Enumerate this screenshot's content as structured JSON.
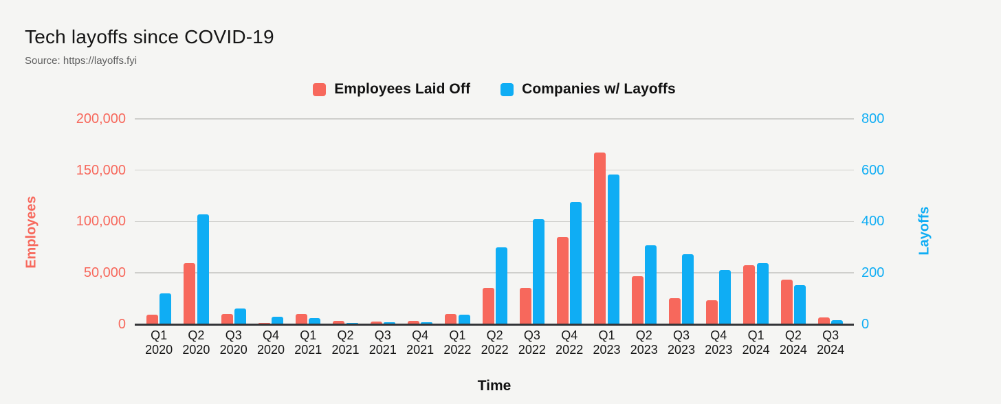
{
  "page": {
    "background": "#f5f5f3"
  },
  "header": {
    "title": "Tech layoffs since COVID-19",
    "source": "Source: https://layoffs.fyi"
  },
  "legend": [
    {
      "label": "Employees Laid Off",
      "color": "#f7685c"
    },
    {
      "label": "Companies w/ Layoffs",
      "color": "#0fadf4"
    }
  ],
  "chart_data": {
    "type": "bar",
    "title": "Tech layoffs since COVID-19",
    "xlabel": "Time",
    "grid": true,
    "legend_position": "top",
    "categories": [
      "Q1 2020",
      "Q2 2020",
      "Q3 2020",
      "Q4 2020",
      "Q1 2021",
      "Q2 2021",
      "Q3 2021",
      "Q4 2021",
      "Q1 2022",
      "Q2 2022",
      "Q3 2022",
      "Q4 2022",
      "Q1 2023",
      "Q2 2023",
      "Q3 2023",
      "Q4 2023",
      "Q1 2024",
      "Q2 2024",
      "Q3 2024"
    ],
    "series": [
      {
        "name": "Employees Laid Off",
        "axis": "left",
        "color": "#f7685c",
        "values": [
          9000,
          59000,
          10000,
          1200,
          9500,
          2900,
          2200,
          2900,
          9600,
          35000,
          35200,
          84500,
          167000,
          46500,
          25000,
          23000,
          57200,
          43400,
          6300
        ]
      },
      {
        "name": "Companies w/ Layoffs",
        "axis": "right",
        "color": "#0fadf4",
        "values": [
          120,
          428,
          60,
          27,
          22,
          5,
          8,
          7,
          36,
          300,
          410,
          475,
          583,
          307,
          272,
          210,
          238,
          151,
          15
        ]
      }
    ],
    "left_axis": {
      "label": "Employees",
      "color": "#f7685c",
      "min": 0,
      "max": 200000,
      "tick_values": [
        0,
        50000,
        100000,
        150000,
        200000
      ],
      "tick_labels": [
        "0",
        "50,000",
        "100,000",
        "150,000",
        "200,000"
      ]
    },
    "right_axis": {
      "label": "Layoffs",
      "color": "#0fadf4",
      "min": 0,
      "max": 800,
      "tick_values": [
        0,
        200,
        400,
        600,
        800
      ],
      "tick_labels": [
        "0",
        "200",
        "400",
        "600",
        "800"
      ]
    }
  }
}
